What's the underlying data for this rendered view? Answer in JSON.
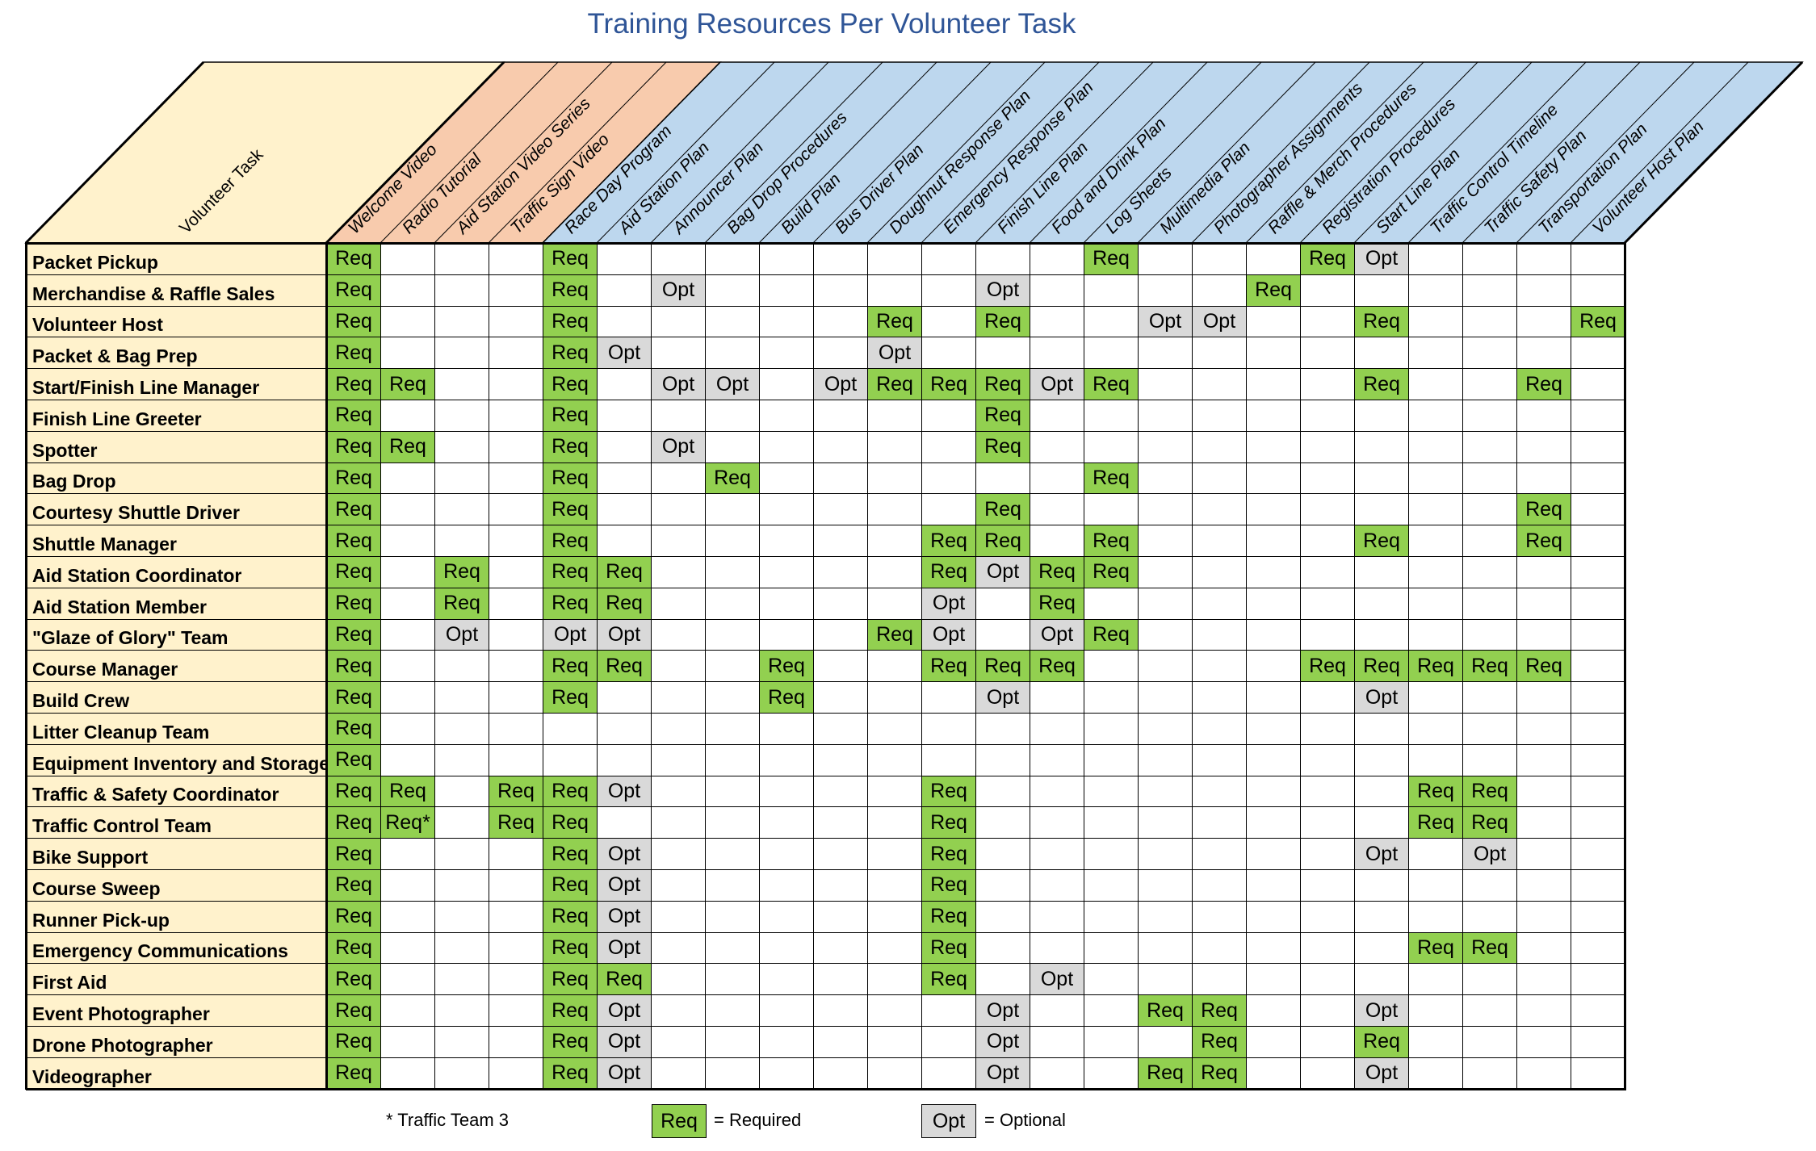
{
  "title": "Training Resources Per Volunteer Task",
  "corner_label": "Volunteer Task",
  "columns": [
    "Welcome Video",
    "Radio Tutorial",
    "Aid Station Video Series",
    "Traffic Sign Video",
    "Race Day Program",
    "Aid Station Plan",
    "Announcer Plan",
    "Bag Drop Procedures",
    "Build Plan",
    "Bus Driver Plan",
    "Doughnut Response Plan",
    "Emergency Response Plan",
    "Finish Line Plan",
    "Food and Drink Plan",
    "Log Sheets",
    "Multimedia Plan",
    "Photographer Assignments",
    "Raffle & Merch Procedures",
    "Registration Procedures",
    "Start Line Plan",
    "Traffic Control Timeline",
    "Traffic Safety Plan",
    "Transportation Plan",
    "Volunteer Host Plan"
  ],
  "rows": [
    {
      "task": "Packet Pickup",
      "cells": [
        "Req",
        "",
        "",
        "",
        "Req",
        "",
        "",
        "",
        "",
        "",
        "",
        "",
        "",
        "",
        "Req",
        "",
        "",
        "",
        "Req",
        "Opt",
        "",
        "",
        "",
        ""
      ]
    },
    {
      "task": "Merchandise & Raffle Sales",
      "cells": [
        "Req",
        "",
        "",
        "",
        "Req",
        "",
        "Opt",
        "",
        "",
        "",
        "",
        "",
        "Opt",
        "",
        "",
        "",
        "",
        "Req",
        "",
        "",
        "",
        "",
        "",
        ""
      ]
    },
    {
      "task": "Volunteer Host",
      "cells": [
        "Req",
        "",
        "",
        "",
        "Req",
        "",
        "",
        "",
        "",
        "",
        "Req",
        "",
        "Req",
        "",
        "",
        "Opt",
        "Opt",
        "",
        "",
        "Req",
        "",
        "",
        "",
        "Req"
      ]
    },
    {
      "task": "Packet & Bag Prep",
      "cells": [
        "Req",
        "",
        "",
        "",
        "Req",
        "Opt",
        "",
        "",
        "",
        "",
        "Opt",
        "",
        "",
        "",
        "",
        "",
        "",
        "",
        "",
        "",
        "",
        "",
        "",
        ""
      ]
    },
    {
      "task": "Start/Finish Line Manager",
      "cells": [
        "Req",
        "Req",
        "",
        "",
        "Req",
        "",
        "Opt",
        "Opt",
        "",
        "Opt",
        "Req",
        "Req",
        "Req",
        "Opt",
        "Req",
        "",
        "",
        "",
        "",
        "Req",
        "",
        "",
        "Req",
        ""
      ]
    },
    {
      "task": "Finish Line Greeter",
      "cells": [
        "Req",
        "",
        "",
        "",
        "Req",
        "",
        "",
        "",
        "",
        "",
        "",
        "",
        "Req",
        "",
        "",
        "",
        "",
        "",
        "",
        "",
        "",
        "",
        "",
        ""
      ]
    },
    {
      "task": "Spotter",
      "cells": [
        "Req",
        "Req",
        "",
        "",
        "Req",
        "",
        "Opt",
        "",
        "",
        "",
        "",
        "",
        "Req",
        "",
        "",
        "",
        "",
        "",
        "",
        "",
        "",
        "",
        "",
        ""
      ]
    },
    {
      "task": "Bag Drop",
      "cells": [
        "Req",
        "",
        "",
        "",
        "Req",
        "",
        "",
        "Req",
        "",
        "",
        "",
        "",
        "",
        "",
        "Req",
        "",
        "",
        "",
        "",
        "",
        "",
        "",
        "",
        ""
      ]
    },
    {
      "task": "Courtesy Shuttle Driver",
      "cells": [
        "Req",
        "",
        "",
        "",
        "Req",
        "",
        "",
        "",
        "",
        "",
        "",
        "",
        "Req",
        "",
        "",
        "",
        "",
        "",
        "",
        "",
        "",
        "",
        "Req",
        ""
      ]
    },
    {
      "task": "Shuttle Manager",
      "cells": [
        "Req",
        "",
        "",
        "",
        "Req",
        "",
        "",
        "",
        "",
        "",
        "",
        "Req",
        "Req",
        "",
        "Req",
        "",
        "",
        "",
        "",
        "Req",
        "",
        "",
        "Req",
        ""
      ]
    },
    {
      "task": "Aid Station Coordinator",
      "cells": [
        "Req",
        "",
        "Req",
        "",
        "Req",
        "Req",
        "",
        "",
        "",
        "",
        "",
        "Req",
        "Opt",
        "Req",
        "Req",
        "",
        "",
        "",
        "",
        "",
        "",
        "",
        "",
        ""
      ]
    },
    {
      "task": "Aid Station Member",
      "cells": [
        "Req",
        "",
        "Req",
        "",
        "Req",
        "Req",
        "",
        "",
        "",
        "",
        "",
        "Opt",
        "",
        "Req",
        "",
        "",
        "",
        "",
        "",
        "",
        "",
        "",
        "",
        ""
      ]
    },
    {
      "task": "\"Glaze of Glory\" Team",
      "cells": [
        "Req",
        "",
        "Opt",
        "",
        "Opt",
        "Opt",
        "",
        "",
        "",
        "",
        "Req",
        "Opt",
        "",
        "Opt",
        "Req",
        "",
        "",
        "",
        "",
        "",
        "",
        "",
        "",
        ""
      ]
    },
    {
      "task": "Course Manager",
      "cells": [
        "Req",
        "",
        "",
        "",
        "Req",
        "Req",
        "",
        "",
        "Req",
        "",
        "",
        "Req",
        "Req",
        "Req",
        "",
        "",
        "",
        "",
        "Req",
        "Req",
        "Req",
        "Req",
        "Req",
        ""
      ]
    },
    {
      "task": "Build Crew",
      "cells": [
        "Req",
        "",
        "",
        "",
        "Req",
        "",
        "",
        "",
        "Req",
        "",
        "",
        "",
        "Opt",
        "",
        "",
        "",
        "",
        "",
        "",
        "Opt",
        "",
        "",
        "",
        ""
      ]
    },
    {
      "task": "Litter Cleanup Team",
      "cells": [
        "Req",
        "",
        "",
        "",
        "",
        "",
        "",
        "",
        "",
        "",
        "",
        "",
        "",
        "",
        "",
        "",
        "",
        "",
        "",
        "",
        "",
        "",
        "",
        ""
      ]
    },
    {
      "task": "Equipment Inventory and Storage",
      "cells": [
        "Req",
        "",
        "",
        "",
        "",
        "",
        "",
        "",
        "",
        "",
        "",
        "",
        "",
        "",
        "",
        "",
        "",
        "",
        "",
        "",
        "",
        "",
        "",
        ""
      ]
    },
    {
      "task": "Traffic & Safety Coordinator",
      "cells": [
        "Req",
        "Req",
        "",
        "Req",
        "Req",
        "Opt",
        "",
        "",
        "",
        "",
        "",
        "Req",
        "",
        "",
        "",
        "",
        "",
        "",
        "",
        "",
        "Req",
        "Req",
        "",
        ""
      ]
    },
    {
      "task": "Traffic Control Team",
      "cells": [
        "Req",
        "Req*",
        "",
        "Req",
        "Req",
        "",
        "",
        "",
        "",
        "",
        "",
        "Req",
        "",
        "",
        "",
        "",
        "",
        "",
        "",
        "",
        "Req",
        "Req",
        "",
        ""
      ]
    },
    {
      "task": "Bike Support",
      "cells": [
        "Req",
        "",
        "",
        "",
        "Req",
        "Opt",
        "",
        "",
        "",
        "",
        "",
        "Req",
        "",
        "",
        "",
        "",
        "",
        "",
        "",
        "Opt",
        "",
        "Opt",
        "",
        ""
      ]
    },
    {
      "task": "Course Sweep",
      "cells": [
        "Req",
        "",
        "",
        "",
        "Req",
        "Opt",
        "",
        "",
        "",
        "",
        "",
        "Req",
        "",
        "",
        "",
        "",
        "",
        "",
        "",
        "",
        "",
        "",
        "",
        ""
      ]
    },
    {
      "task": "Runner Pick-up",
      "cells": [
        "Req",
        "",
        "",
        "",
        "Req",
        "Opt",
        "",
        "",
        "",
        "",
        "",
        "Req",
        "",
        "",
        "",
        "",
        "",
        "",
        "",
        "",
        "",
        "",
        "",
        ""
      ]
    },
    {
      "task": "Emergency Communications",
      "cells": [
        "Req",
        "",
        "",
        "",
        "Req",
        "Opt",
        "",
        "",
        "",
        "",
        "",
        "Req",
        "",
        "",
        "",
        "",
        "",
        "",
        "",
        "",
        "Req",
        "Req",
        "",
        ""
      ]
    },
    {
      "task": "First Aid",
      "cells": [
        "Req",
        "",
        "",
        "",
        "Req",
        "Req",
        "",
        "",
        "",
        "",
        "",
        "Req",
        "",
        "Opt",
        "",
        "",
        "",
        "",
        "",
        "",
        "",
        "",
        "",
        ""
      ]
    },
    {
      "task": "Event Photographer",
      "cells": [
        "Req",
        "",
        "",
        "",
        "Req",
        "Opt",
        "",
        "",
        "",
        "",
        "",
        "",
        "Opt",
        "",
        "",
        "Req",
        "Req",
        "",
        "",
        "Opt",
        "",
        "",
        "",
        ""
      ]
    },
    {
      "task": "Drone Photographer",
      "cells": [
        "Req",
        "",
        "",
        "",
        "Req",
        "Opt",
        "",
        "",
        "",
        "",
        "",
        "",
        "Opt",
        "",
        "",
        "",
        "Req",
        "",
        "",
        "Req",
        "",
        "",
        "",
        ""
      ]
    },
    {
      "task": "Videographer",
      "cells": [
        "Req",
        "",
        "",
        "",
        "Req",
        "Opt",
        "",
        "",
        "",
        "",
        "",
        "",
        "Opt",
        "",
        "",
        "Req",
        "Req",
        "",
        "",
        "Opt",
        "",
        "",
        "",
        ""
      ]
    }
  ],
  "footnote": "* Traffic Team 3",
  "legend": [
    {
      "code": "Req",
      "meaning": "= Required"
    },
    {
      "code": "Opt",
      "meaning": "= Optional"
    }
  ],
  "colors": {
    "req": "#92d050",
    "opt": "#d9d9d9",
    "task_bg": "#fff2cc",
    "header_orange": "#f8cbad",
    "header_blue": "#bdd7ee",
    "title": "#2f5597"
  }
}
